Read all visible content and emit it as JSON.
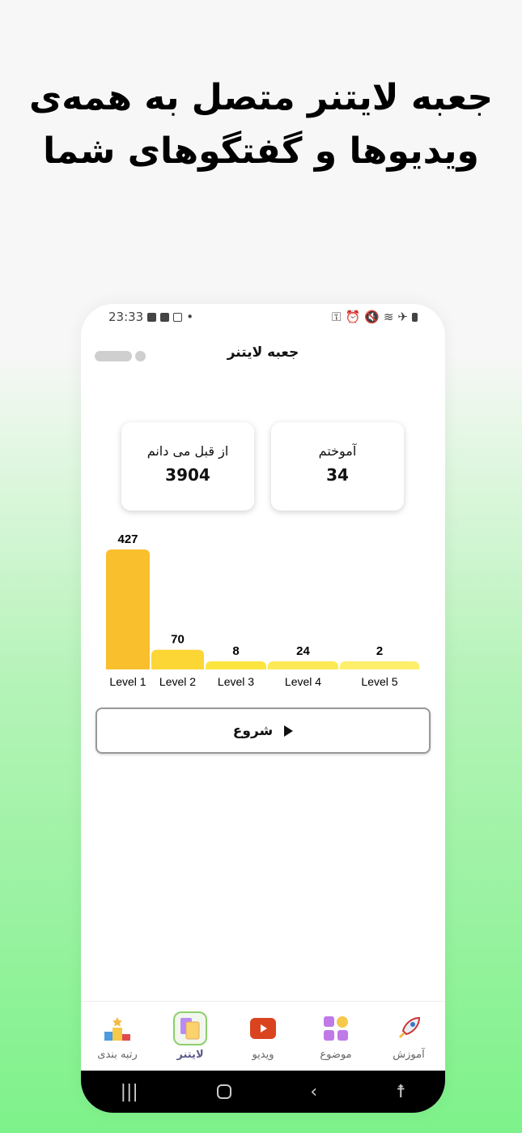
{
  "headline": {
    "line1": "جعبه لایتنر متصل به همه‌ی",
    "line2": "ویدیوها و گفتگوهای شما"
  },
  "status": {
    "time": "23:33",
    "icons": [
      "image-icon",
      "youtube-icon",
      "instagram-icon",
      "dot-icon",
      "vpn-key-icon",
      "alarm-icon",
      "mute-icon",
      "wifi-icon",
      "airplane-icon",
      "battery-icon"
    ]
  },
  "header": {
    "title": "جعبه لایتنر"
  },
  "cards": [
    {
      "label": "آموختم",
      "value": "34"
    },
    {
      "label": "از قبل می دانم",
      "value": "3904"
    }
  ],
  "chart_data": {
    "type": "bar",
    "categories": [
      "Level 1",
      "Level 2",
      "Level 3",
      "Level 4",
      "Level 5"
    ],
    "values": [
      427,
      70,
      8,
      24,
      2
    ],
    "colors": [
      "#f9bf2c",
      "#fcd634",
      "#fde540",
      "#fde955",
      "#fdee6c"
    ]
  },
  "start_button": {
    "label": "شروع"
  },
  "nav": [
    {
      "label": "آموزش",
      "icon": "rocket-icon"
    },
    {
      "label": "موضوع",
      "icon": "grid-icon"
    },
    {
      "label": "ویدیو",
      "icon": "youtube-icon"
    },
    {
      "label": "لایتنر",
      "icon": "cards-icon",
      "active": true
    },
    {
      "label": "رتبه بندی",
      "icon": "podium-icon"
    }
  ],
  "system_nav": [
    "recent-apps-icon",
    "home-icon",
    "back-icon",
    "accessibility-icon"
  ]
}
